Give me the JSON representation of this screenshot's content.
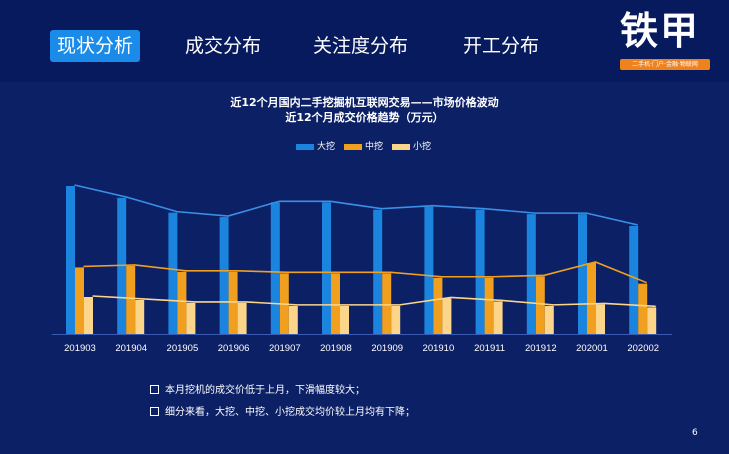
{
  "nav": {
    "tabs": [
      {
        "label": "现状分析",
        "active": true
      },
      {
        "label": "成交分布",
        "active": false
      },
      {
        "label": "关注度分布",
        "active": false
      },
      {
        "label": "开工分布",
        "active": false
      }
    ]
  },
  "logo": {
    "main": "铁甲",
    "tagline": "二手机·门户·金融·物联网"
  },
  "colors": {
    "background": "#0c2066",
    "accent": "#1a8be8",
    "brand_orange": "#f0821e"
  },
  "chart_data": {
    "type": "bar",
    "title": "近12个月国内二手挖掘机互联网交易——市场价格波动",
    "subtitle": "近12个月成交价格趋势（万元）",
    "xlabel": "",
    "ylabel": "",
    "ylim": [
      0,
      100
    ],
    "grid": false,
    "legend_position": "top-center",
    "categories": [
      "201903",
      "201904",
      "201905",
      "201906",
      "201907",
      "201908",
      "201909",
      "201910",
      "201911",
      "201912",
      "202001",
      "202002"
    ],
    "series": [
      {
        "name": "大挖",
        "color": "#1a84de",
        "values": [
          100,
          92,
          82,
          79,
          89,
          89,
          84,
          86,
          84,
          81,
          81,
          73
        ]
      },
      {
        "name": "中挖",
        "color": "#f0a01e",
        "values": [
          45,
          46,
          42,
          42,
          41,
          41,
          41,
          38,
          38,
          39,
          48,
          34
        ]
      },
      {
        "name": "小挖",
        "color": "#fbd58a",
        "values": [
          25,
          23,
          21,
          21,
          19,
          19,
          19,
          24,
          22,
          19,
          20,
          18
        ]
      }
    ]
  },
  "notes": [
    "本月挖机的成交价低于上月，下滑幅度较大；",
    "细分来看，大挖、中挖、小挖成交均价较上月均有下降；"
  ],
  "page_number": "6"
}
